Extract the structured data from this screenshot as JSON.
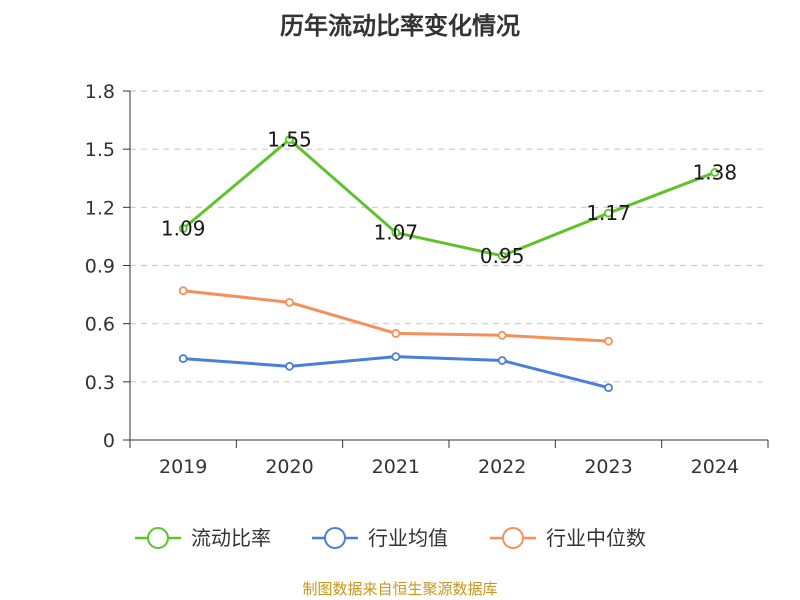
{
  "chart_data": {
    "type": "line",
    "title": "历年流动比率变化情况",
    "categories": [
      "2019",
      "2020",
      "2021",
      "2022",
      "2023",
      "2024"
    ],
    "yticks": [
      "0",
      "0.3",
      "0.6",
      "0.9",
      "1.2",
      "1.5",
      "1.8"
    ],
    "ylim": [
      0,
      1.8
    ],
    "grid": true,
    "legend_position": "bottom",
    "series": [
      {
        "name": "流动比率",
        "color": "#5ec32a",
        "values": [
          1.09,
          1.55,
          1.07,
          0.95,
          1.17,
          1.38
        ],
        "labels": [
          "1.09",
          "1.55",
          "1.07",
          "0.95",
          "1.17",
          "1.38"
        ]
      },
      {
        "name": "行业均值",
        "color": "#4a7fd9",
        "values": [
          0.42,
          0.38,
          0.43,
          0.41,
          0.27,
          null
        ]
      },
      {
        "name": "行业中位数",
        "color": "#f5905a",
        "values": [
          0.77,
          0.71,
          0.55,
          0.54,
          0.51,
          null
        ]
      }
    ]
  },
  "footer": {
    "source": "制图数据来自恒生聚源数据库",
    "source_color": "#c9961a"
  }
}
